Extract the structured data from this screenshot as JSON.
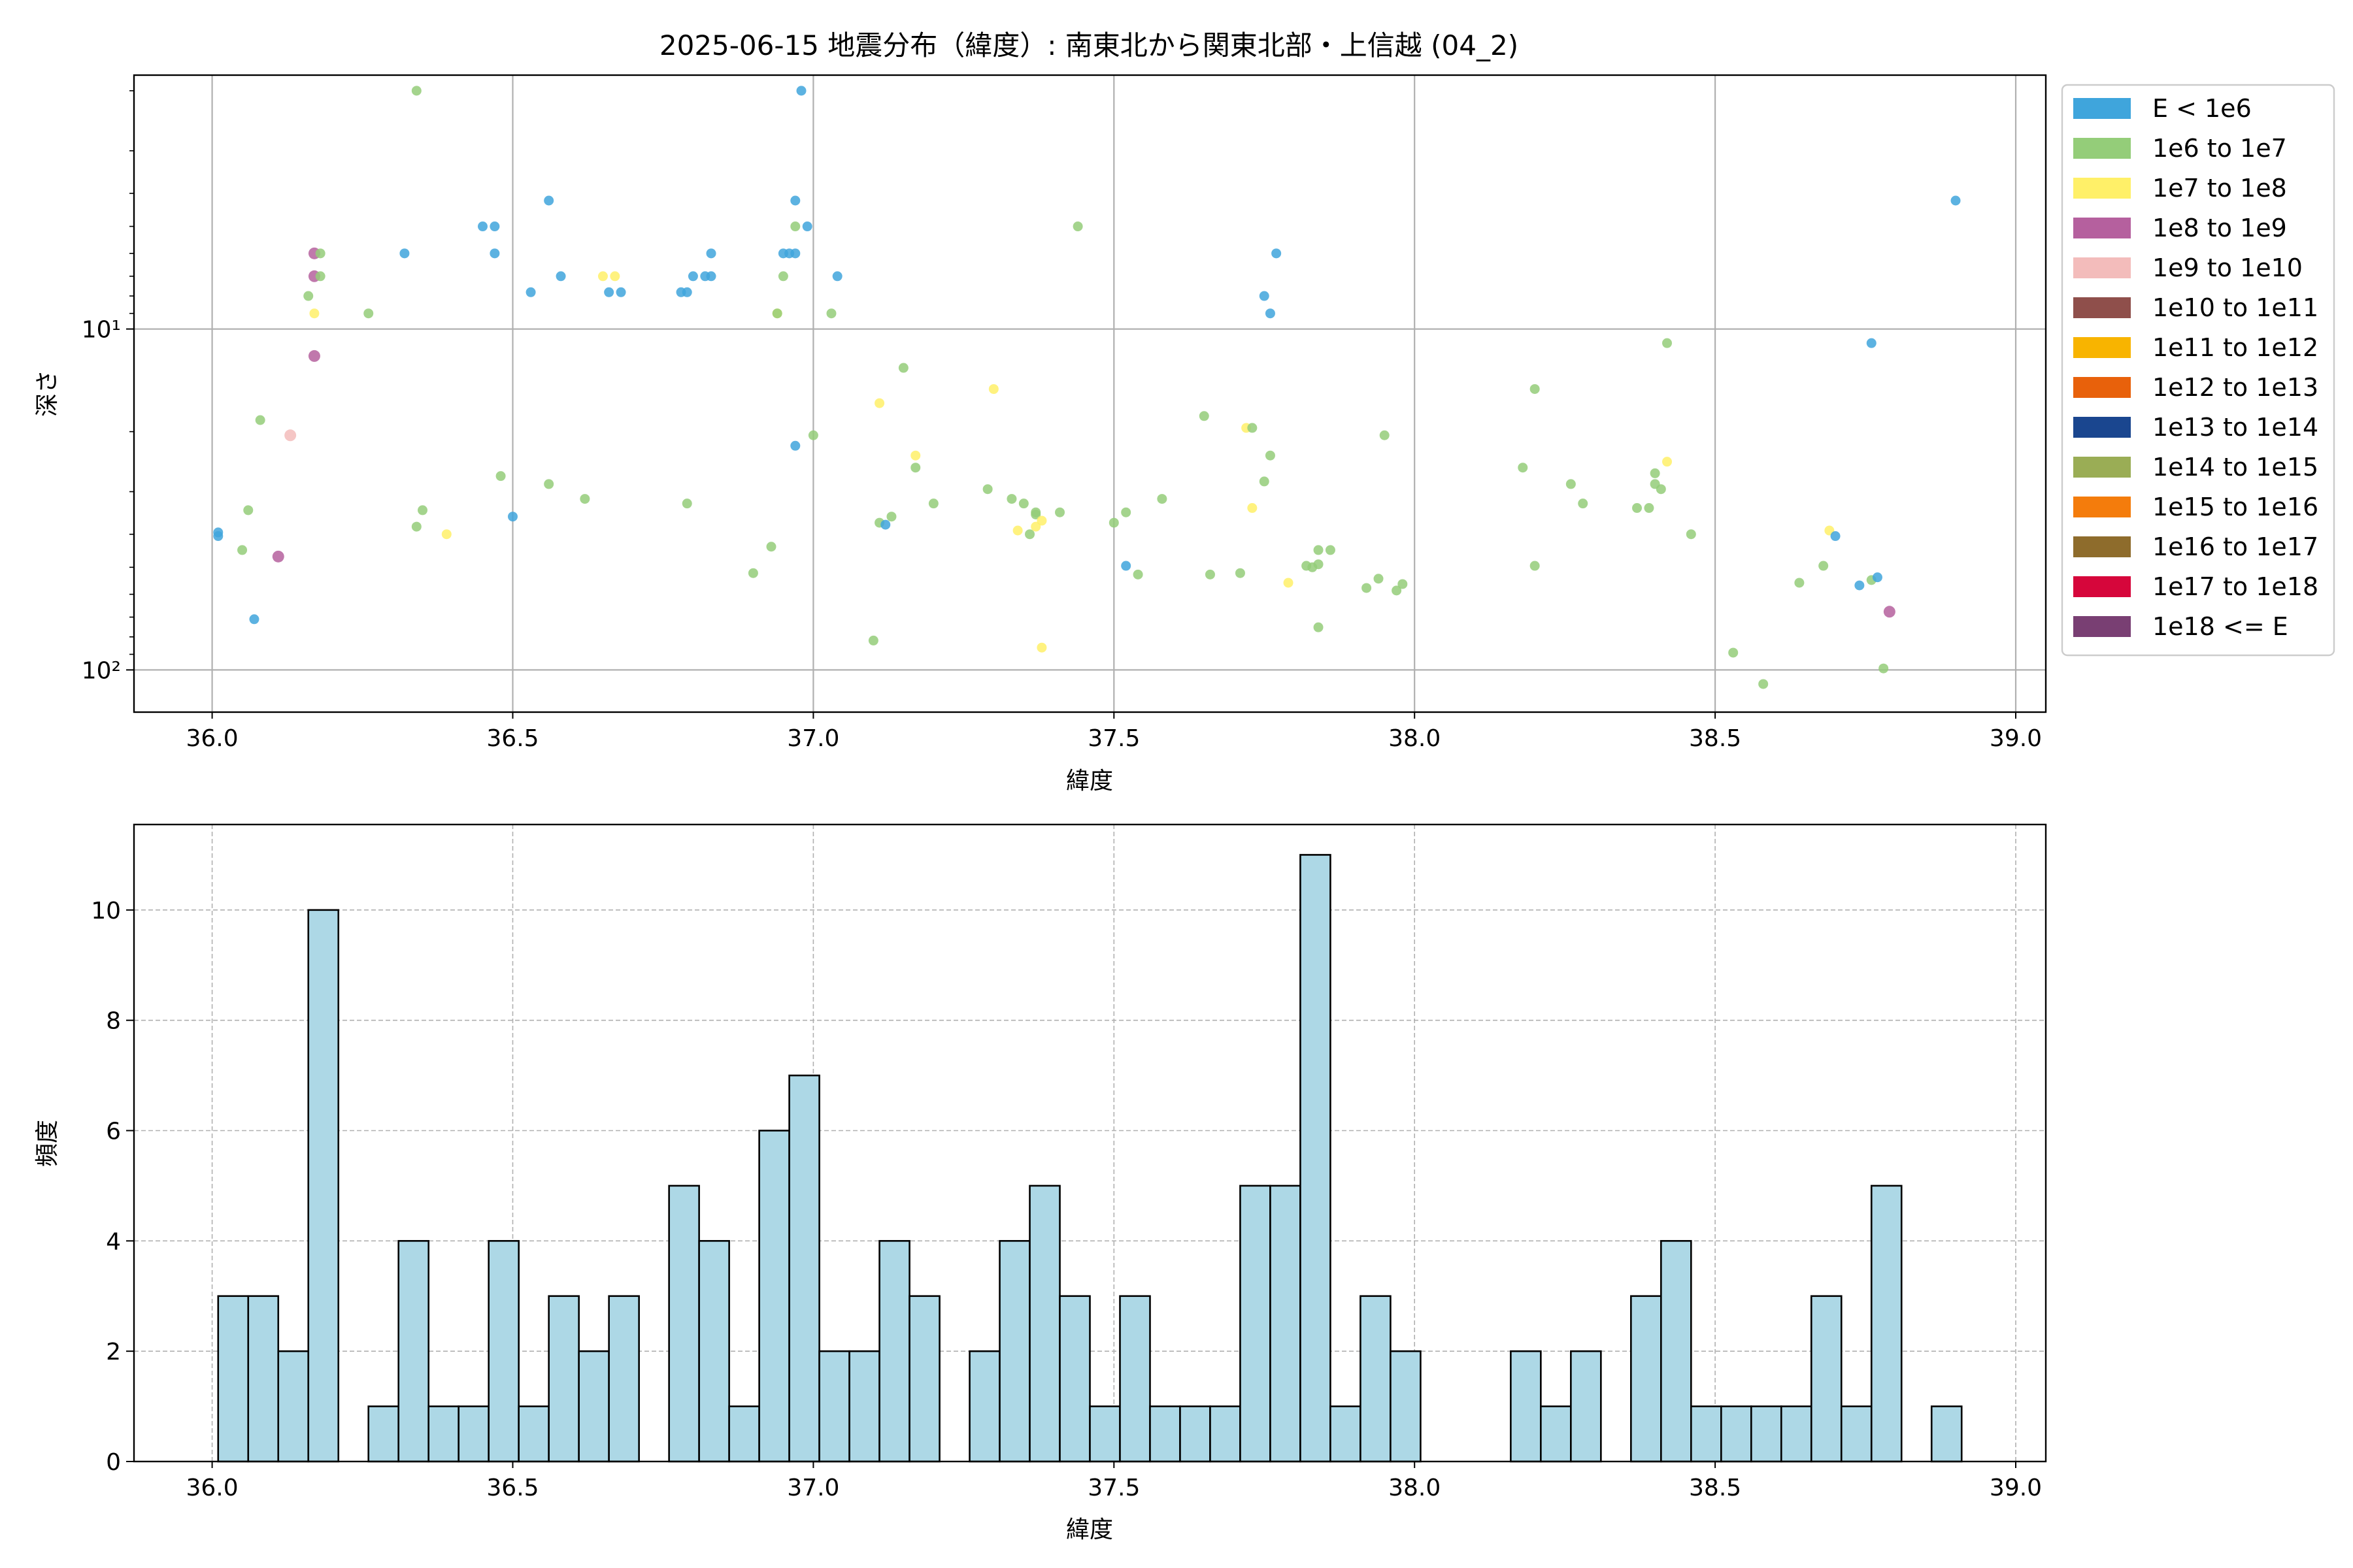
{
  "chart_data": [
    {
      "type": "scatter",
      "title": "2025-06-15 地震分布（緯度）: 南東北から関東北部・上信越 (04_2)",
      "xlabel": "緯度",
      "ylabel": "深さ",
      "xlim": [
        35.87,
        39.05
      ],
      "ylim": [
        133,
        1.8
      ],
      "y_scale": "log",
      "y_inverted": true,
      "x_ticks": [
        36.0,
        36.5,
        37.0,
        37.5,
        38.0,
        38.5,
        39.0
      ],
      "x_tick_labels": [
        "36.0",
        "36.5",
        "37.0",
        "37.5",
        "38.0",
        "38.5",
        "39.0"
      ],
      "y_ticks": [
        10,
        100
      ],
      "y_tick_labels": [
        "10¹",
        "10²"
      ],
      "grid": true,
      "legend_position": "outside-right",
      "legend": [
        {
          "label": "E < 1e6",
          "color": "#3fa5dc"
        },
        {
          "label": "1e6 to 1e7",
          "color": "#94cd79"
        },
        {
          "label": "1e7 to 1e8",
          "color": "#fff068"
        },
        {
          "label": "1e8 to 1e9",
          "color": "#b5609e"
        },
        {
          "label": "1e9 to 1e10",
          "color": "#f3bcbb"
        },
        {
          "label": "1e10 to 1e11",
          "color": "#8f4f4b"
        },
        {
          "label": "1e11 to 1e12",
          "color": "#f8b400"
        },
        {
          "label": "1e12 to 1e13",
          "color": "#e8610b"
        },
        {
          "label": "1e13 to 1e14",
          "color": "#1a468f"
        },
        {
          "label": "1e14 to 1e15",
          "color": "#9aad55"
        },
        {
          "label": "1e15 to 1e16",
          "color": "#f47c0c"
        },
        {
          "label": "1e16 to 1e17",
          "color": "#8e6c2c"
        },
        {
          "label": "1e17 to 1e18",
          "color": "#d6063b"
        },
        {
          "label": "1e18 <= E",
          "color": "#793f73"
        }
      ],
      "points": [
        {
          "x": 36.01,
          "y": 39.5,
          "c": 0
        },
        {
          "x": 36.01,
          "y": 40.5,
          "c": 0
        },
        {
          "x": 36.07,
          "y": 71,
          "c": 0
        },
        {
          "x": 36.05,
          "y": 44.5,
          "c": 1
        },
        {
          "x": 36.06,
          "y": 34,
          "c": 1
        },
        {
          "x": 36.08,
          "y": 18.5,
          "c": 1
        },
        {
          "x": 36.11,
          "y": 46.5,
          "c": 3
        },
        {
          "x": 36.13,
          "y": 20.5,
          "c": 4
        },
        {
          "x": 36.16,
          "y": 8,
          "c": 1
        },
        {
          "x": 36.17,
          "y": 6,
          "c": 3
        },
        {
          "x": 36.18,
          "y": 6,
          "c": 1
        },
        {
          "x": 36.17,
          "y": 7,
          "c": 3
        },
        {
          "x": 36.18,
          "y": 7,
          "c": 1
        },
        {
          "x": 36.17,
          "y": 12,
          "c": 3
        },
        {
          "x": 36.17,
          "y": 9,
          "c": 2
        },
        {
          "x": 36.26,
          "y": 9,
          "c": 1
        },
        {
          "x": 36.32,
          "y": 6,
          "c": 0
        },
        {
          "x": 36.34,
          "y": 2,
          "c": 1
        },
        {
          "x": 36.34,
          "y": 38,
          "c": 1
        },
        {
          "x": 36.35,
          "y": 34,
          "c": 1
        },
        {
          "x": 36.39,
          "y": 40,
          "c": 2
        },
        {
          "x": 36.45,
          "y": 5,
          "c": 0
        },
        {
          "x": 36.47,
          "y": 5,
          "c": 0
        },
        {
          "x": 36.47,
          "y": 6,
          "c": 0
        },
        {
          "x": 36.48,
          "y": 27,
          "c": 1
        },
        {
          "x": 36.5,
          "y": 35.5,
          "c": 0
        },
        {
          "x": 36.53,
          "y": 7.8,
          "c": 0
        },
        {
          "x": 36.56,
          "y": 4.2,
          "c": 0
        },
        {
          "x": 36.56,
          "y": 28.5,
          "c": 1
        },
        {
          "x": 36.58,
          "y": 7,
          "c": 0
        },
        {
          "x": 36.62,
          "y": 31.5,
          "c": 1
        },
        {
          "x": 36.65,
          "y": 7,
          "c": 2
        },
        {
          "x": 36.67,
          "y": 7,
          "c": 2
        },
        {
          "x": 36.66,
          "y": 7.8,
          "c": 0
        },
        {
          "x": 36.68,
          "y": 7.8,
          "c": 0
        },
        {
          "x": 36.78,
          "y": 7.8,
          "c": 0
        },
        {
          "x": 36.79,
          "y": 7.8,
          "c": 0
        },
        {
          "x": 36.8,
          "y": 7,
          "c": 0
        },
        {
          "x": 36.79,
          "y": 32.5,
          "c": 1
        },
        {
          "x": 36.82,
          "y": 7,
          "c": 0
        },
        {
          "x": 36.83,
          "y": 7,
          "c": 0
        },
        {
          "x": 36.83,
          "y": 6,
          "c": 0
        },
        {
          "x": 36.9,
          "y": 52,
          "c": 1
        },
        {
          "x": 36.93,
          "y": 43.5,
          "c": 1
        },
        {
          "x": 36.94,
          "y": 9,
          "c": 2
        },
        {
          "x": 36.95,
          "y": 7,
          "c": 1
        },
        {
          "x": 36.94,
          "y": 9,
          "c": 1
        },
        {
          "x": 36.95,
          "y": 6,
          "c": 0
        },
        {
          "x": 36.96,
          "y": 6,
          "c": 0
        },
        {
          "x": 36.97,
          "y": 6,
          "c": 0
        },
        {
          "x": 36.97,
          "y": 5,
          "c": 1
        },
        {
          "x": 36.97,
          "y": 4.2,
          "c": 0
        },
        {
          "x": 36.97,
          "y": 22,
          "c": 0
        },
        {
          "x": 36.98,
          "y": 2,
          "c": 0
        },
        {
          "x": 36.99,
          "y": 5,
          "c": 0
        },
        {
          "x": 37.0,
          "y": 20.5,
          "c": 1
        },
        {
          "x": 37.03,
          "y": 9,
          "c": 1
        },
        {
          "x": 37.04,
          "y": 7,
          "c": 0
        },
        {
          "x": 37.1,
          "y": 82,
          "c": 1
        },
        {
          "x": 37.11,
          "y": 16.5,
          "c": 2
        },
        {
          "x": 37.11,
          "y": 37,
          "c": 1
        },
        {
          "x": 37.12,
          "y": 37.5,
          "c": 0
        },
        {
          "x": 37.13,
          "y": 35.5,
          "c": 1
        },
        {
          "x": 37.15,
          "y": 13,
          "c": 1
        },
        {
          "x": 37.17,
          "y": 23.5,
          "c": 2
        },
        {
          "x": 37.17,
          "y": 25.5,
          "c": 1
        },
        {
          "x": 37.2,
          "y": 32.5,
          "c": 1
        },
        {
          "x": 37.29,
          "y": 29.5,
          "c": 1
        },
        {
          "x": 37.3,
          "y": 15,
          "c": 2
        },
        {
          "x": 37.33,
          "y": 31.5,
          "c": 1
        },
        {
          "x": 37.34,
          "y": 39,
          "c": 2
        },
        {
          "x": 37.35,
          "y": 32.5,
          "c": 1
        },
        {
          "x": 37.36,
          "y": 40,
          "c": 1
        },
        {
          "x": 37.37,
          "y": 35,
          "c": 1
        },
        {
          "x": 37.37,
          "y": 38,
          "c": 2
        },
        {
          "x": 37.38,
          "y": 36.5,
          "c": 2
        },
        {
          "x": 37.37,
          "y": 34.5,
          "c": 1
        },
        {
          "x": 37.38,
          "y": 86,
          "c": 2
        },
        {
          "x": 37.41,
          "y": 34.5,
          "c": 1
        },
        {
          "x": 37.44,
          "y": 5,
          "c": 1
        },
        {
          "x": 37.5,
          "y": 37,
          "c": 1
        },
        {
          "x": 37.52,
          "y": 34.5,
          "c": 1
        },
        {
          "x": 37.52,
          "y": 49.5,
          "c": 0
        },
        {
          "x": 37.54,
          "y": 52.5,
          "c": 1
        },
        {
          "x": 37.58,
          "y": 31.5,
          "c": 1
        },
        {
          "x": 37.65,
          "y": 18,
          "c": 1
        },
        {
          "x": 37.66,
          "y": 52.5,
          "c": 1
        },
        {
          "x": 37.72,
          "y": 19.5,
          "c": 2
        },
        {
          "x": 37.73,
          "y": 19.5,
          "c": 1
        },
        {
          "x": 37.71,
          "y": 52,
          "c": 1
        },
        {
          "x": 37.73,
          "y": 33.5,
          "c": 2
        },
        {
          "x": 37.75,
          "y": 28,
          "c": 1
        },
        {
          "x": 37.76,
          "y": 23.5,
          "c": 1
        },
        {
          "x": 37.75,
          "y": 8,
          "c": 0
        },
        {
          "x": 37.76,
          "y": 9,
          "c": 0
        },
        {
          "x": 37.77,
          "y": 6,
          "c": 0
        },
        {
          "x": 37.79,
          "y": 55.5,
          "c": 2
        },
        {
          "x": 37.82,
          "y": 49.5,
          "c": 1
        },
        {
          "x": 37.83,
          "y": 50,
          "c": 1
        },
        {
          "x": 37.84,
          "y": 49,
          "c": 1
        },
        {
          "x": 37.84,
          "y": 44.5,
          "c": 1
        },
        {
          "x": 37.84,
          "y": 75,
          "c": 1
        },
        {
          "x": 37.86,
          "y": 44.5,
          "c": 1
        },
        {
          "x": 37.92,
          "y": 57.5,
          "c": 1
        },
        {
          "x": 37.94,
          "y": 54,
          "c": 1
        },
        {
          "x": 37.95,
          "y": 20.5,
          "c": 1
        },
        {
          "x": 37.97,
          "y": 58.5,
          "c": 1
        },
        {
          "x": 37.98,
          "y": 56,
          "c": 1
        },
        {
          "x": 38.18,
          "y": 25.5,
          "c": 1
        },
        {
          "x": 38.2,
          "y": 15,
          "c": 1
        },
        {
          "x": 38.2,
          "y": 49.5,
          "c": 1
        },
        {
          "x": 38.26,
          "y": 28.5,
          "c": 1
        },
        {
          "x": 38.28,
          "y": 32.5,
          "c": 1
        },
        {
          "x": 38.37,
          "y": 33.5,
          "c": 1
        },
        {
          "x": 38.39,
          "y": 33.5,
          "c": 1
        },
        {
          "x": 38.4,
          "y": 26.5,
          "c": 1
        },
        {
          "x": 38.4,
          "y": 28.5,
          "c": 1
        },
        {
          "x": 38.41,
          "y": 29.5,
          "c": 1
        },
        {
          "x": 38.42,
          "y": 24.5,
          "c": 2
        },
        {
          "x": 38.42,
          "y": 11,
          "c": 1
        },
        {
          "x": 38.46,
          "y": 40,
          "c": 1
        },
        {
          "x": 38.53,
          "y": 89,
          "c": 1
        },
        {
          "x": 38.58,
          "y": 110,
          "c": 1
        },
        {
          "x": 38.64,
          "y": 55.5,
          "c": 1
        },
        {
          "x": 38.68,
          "y": 49.5,
          "c": 1
        },
        {
          "x": 38.69,
          "y": 39,
          "c": 2
        },
        {
          "x": 38.7,
          "y": 40.5,
          "c": 0
        },
        {
          "x": 38.74,
          "y": 56.5,
          "c": 0
        },
        {
          "x": 38.76,
          "y": 11,
          "c": 0
        },
        {
          "x": 38.76,
          "y": 54.5,
          "c": 1
        },
        {
          "x": 38.77,
          "y": 53.5,
          "c": 0
        },
        {
          "x": 38.78,
          "y": 99,
          "c": 1
        },
        {
          "x": 38.79,
          "y": 67.5,
          "c": 3
        },
        {
          "x": 38.9,
          "y": 4.2,
          "c": 0
        }
      ]
    },
    {
      "type": "bar",
      "xlabel": "緯度",
      "ylabel": "頻度",
      "xlim": [
        35.87,
        39.05
      ],
      "ylim": [
        0,
        11.55
      ],
      "x_ticks": [
        36.0,
        36.5,
        37.0,
        37.5,
        38.0,
        38.5,
        39.0
      ],
      "x_tick_labels": [
        "36.0",
        "36.5",
        "37.0",
        "37.5",
        "38.0",
        "38.5",
        "39.0"
      ],
      "y_ticks": [
        0,
        2,
        4,
        6,
        8,
        10
      ],
      "y_tick_labels": [
        "0",
        "2",
        "4",
        "6",
        "8",
        "10"
      ],
      "grid": true,
      "bin_start": 36.01,
      "bin_width": 0.05,
      "values": [
        3,
        3,
        2,
        10,
        0,
        1,
        4,
        1,
        1,
        4,
        1,
        3,
        2,
        3,
        0,
        5,
        4,
        1,
        6,
        7,
        2,
        2,
        4,
        3,
        0,
        2,
        4,
        5,
        3,
        1,
        3,
        1,
        1,
        1,
        5,
        5,
        11,
        1,
        3,
        2,
        0,
        0,
        0,
        2,
        1,
        2,
        0,
        3,
        4,
        1,
        1,
        1,
        1,
        3,
        1,
        5,
        0,
        1
      ],
      "bar_color": "#add8e6",
      "edge_color": "#000000"
    }
  ]
}
